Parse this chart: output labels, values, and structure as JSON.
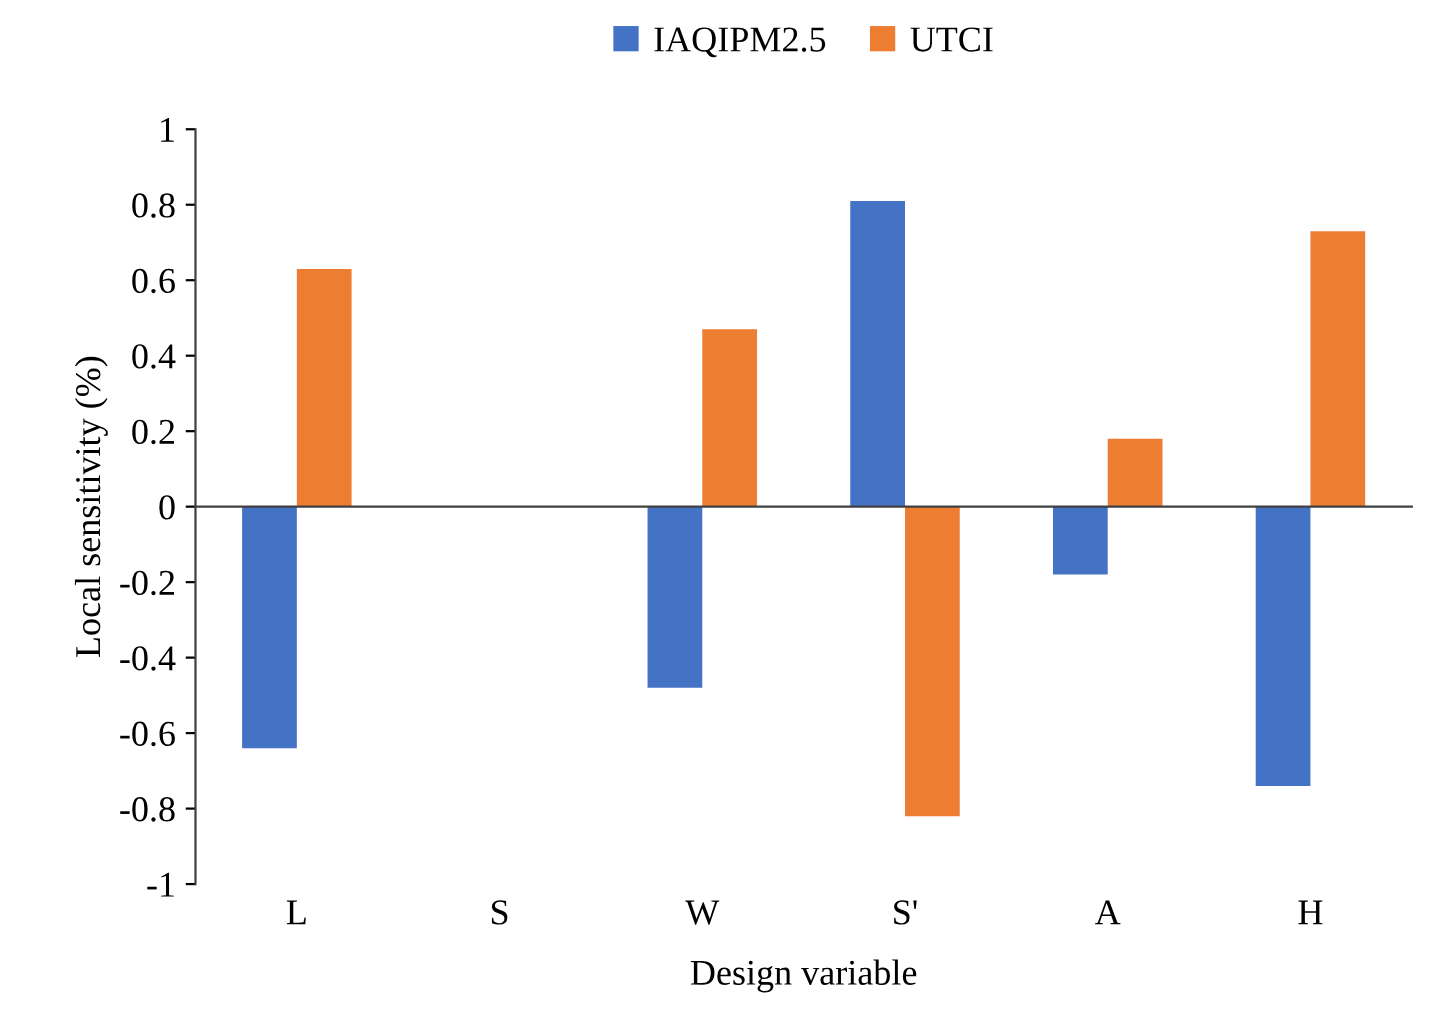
{
  "chart_data": {
    "type": "bar",
    "xlabel": "Design variable",
    "ylabel": "Local sensitivity (%)",
    "categories": [
      "L",
      "S",
      "W",
      "S'",
      "A",
      "H"
    ],
    "series": [
      {
        "name": "IAQIPM2.5",
        "color": "#4472c4",
        "values": [
          -0.64,
          0,
          -0.48,
          0.81,
          -0.18,
          -0.74
        ]
      },
      {
        "name": "UTCI",
        "color": "#ed7d31",
        "values": [
          0.63,
          0,
          0.47,
          -0.82,
          0.18,
          0.73
        ]
      }
    ],
    "ylim": [
      -1,
      1
    ],
    "yticks": [
      -1,
      -0.8,
      -0.6,
      -0.4,
      -0.2,
      0,
      0.2,
      0.4,
      0.6,
      0.8,
      1
    ],
    "legend": "top"
  }
}
